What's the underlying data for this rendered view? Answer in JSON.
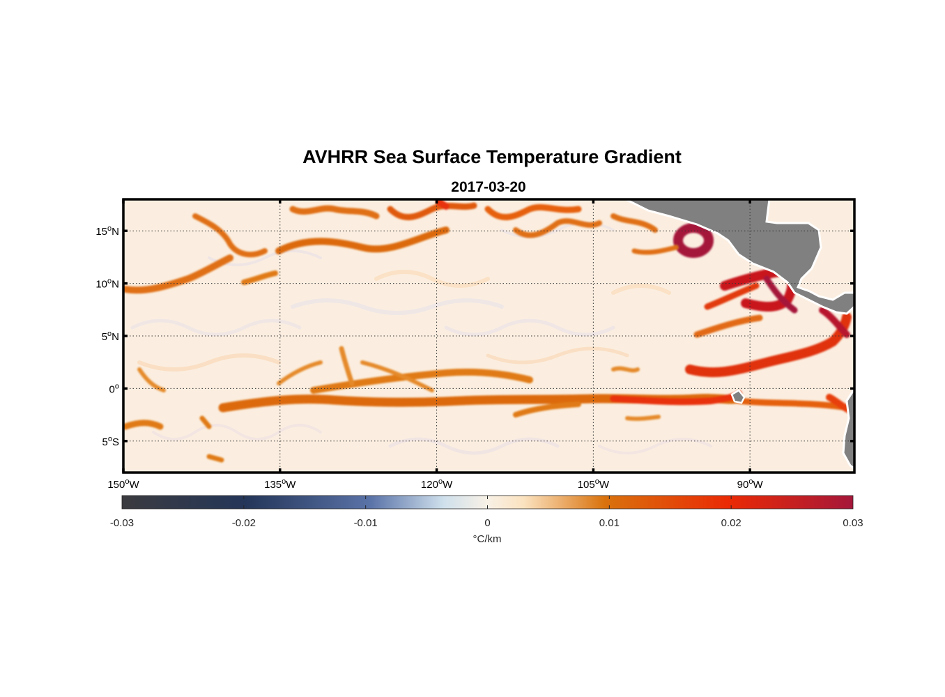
{
  "title": "AVHRR Sea Surface Temperature Gradient",
  "date": "2017-03-20",
  "map": {
    "lon_range": [
      -150,
      -80
    ],
    "lat_range": [
      -8,
      18
    ],
    "grid": true,
    "land_color": "#808080",
    "lat_ticks": [
      {
        "value": 15,
        "deg": "15",
        "hemi": "N"
      },
      {
        "value": 10,
        "deg": "10",
        "hemi": "N"
      },
      {
        "value": 5,
        "deg": "5",
        "hemi": "N"
      },
      {
        "value": 0,
        "deg": "0",
        "hemi": ""
      },
      {
        "value": -5,
        "deg": "5",
        "hemi": "S"
      }
    ],
    "lon_ticks": [
      {
        "value": -150,
        "deg": "150",
        "hemi": "W"
      },
      {
        "value": -135,
        "deg": "135",
        "hemi": "W"
      },
      {
        "value": -120,
        "deg": "120",
        "hemi": "W"
      },
      {
        "value": -105,
        "deg": "105",
        "hemi": "W"
      },
      {
        "value": -90,
        "deg": "90",
        "hemi": "W"
      }
    ]
  },
  "colorbar": {
    "range": [
      -0.03,
      0.03
    ],
    "ticks": [
      "-0.03",
      "-0.02",
      "-0.01",
      "0",
      "0.01",
      "0.02",
      "0.03"
    ],
    "label": "°C/km",
    "colors": [
      "#3b3b3f",
      "#243659",
      "#5a73a8",
      "#cfe0ec",
      "#f8f1e6",
      "#fbe2bf",
      "#d9720d",
      "#ea2a05",
      "#a5173a"
    ]
  }
}
